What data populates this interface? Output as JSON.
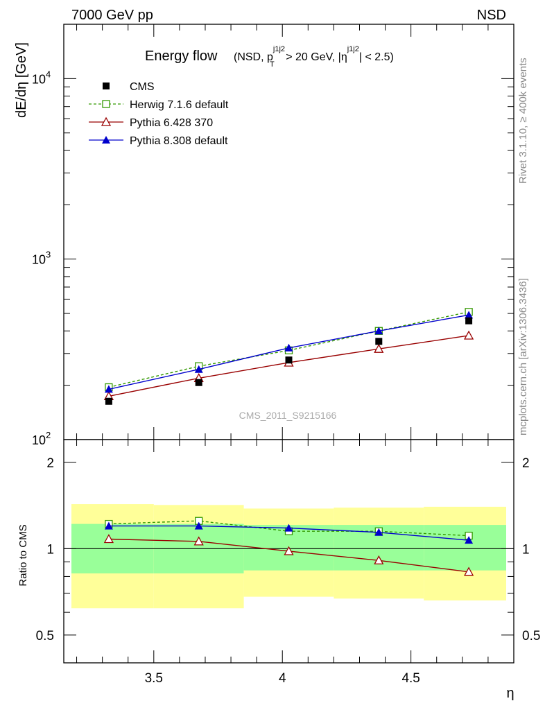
{
  "header": {
    "left": "7000 GeV pp",
    "right": "NSD"
  },
  "side_labels": {
    "rivet": "Rivet 3.1.10, ≥ 400k events",
    "mcplots": "mcplots.cern.ch [arXiv:1306.3436]"
  },
  "watermark": "CMS_2011_S9215166",
  "chart_data": [
    {
      "type": "scatter",
      "panel": "main",
      "title": "Energy flow",
      "title_sub_parts": {
        "a": "(NSD, p",
        "sup1": "j1j2",
        "sub1": "T",
        "b": " > 20 GeV, |η",
        "sup2": "j1j2",
        "c": "| < 2.5)"
      },
      "ylabel": "dE/dη [GeV]",
      "yscale": "log",
      "ylim": [
        100,
        20000
      ],
      "xlim": [
        3.15,
        4.9
      ],
      "ytick_labels": [
        {
          "base": "10",
          "exp": "2",
          "value": 100
        },
        {
          "base": "10",
          "exp": "3",
          "value": 1000
        },
        {
          "base": "10",
          "exp": "4",
          "value": 10000
        }
      ],
      "x": [
        3.325,
        3.675,
        4.025,
        4.375,
        4.725
      ],
      "series": [
        {
          "name": "CMS",
          "values": [
            163,
            207,
            276,
            350,
            455
          ],
          "color": "#000000",
          "marker": "filled-square",
          "line": "none"
        },
        {
          "name": "Herwig 7.1.6 default",
          "values": [
            195,
            255,
            312,
            400,
            510
          ],
          "color": "#339900",
          "marker": "open-square",
          "line": "dashed"
        },
        {
          "name": "Pythia 6.428 370",
          "values": [
            174,
            219,
            267,
            318,
            377
          ],
          "color": "#990000",
          "marker": "open-triangle",
          "line": "solid"
        },
        {
          "name": "Pythia 8.308 default",
          "values": [
            190,
            245,
            322,
            400,
            490
          ],
          "color": "#0000cc",
          "marker": "filled-triangle",
          "line": "solid"
        }
      ]
    },
    {
      "type": "line",
      "panel": "ratio",
      "ylabel": "Ratio to CMS",
      "ylim": [
        0.4,
        2.4
      ],
      "xlim": [
        3.15,
        4.9
      ],
      "xlabel": "η",
      "xtick_labels": [
        "3.5",
        "4",
        "4.5"
      ],
      "xtick_values": [
        3.5,
        4.0,
        4.5
      ],
      "ytick_labels": [
        "0.5",
        "1",
        "2"
      ],
      "ytick_values": [
        0.5,
        1,
        2
      ],
      "x": [
        3.325,
        3.675,
        4.025,
        4.375,
        4.725
      ],
      "bands": {
        "bin_edges": [
          3.15,
          3.5,
          3.85,
          4.2,
          4.55,
          4.9
        ],
        "yellow_low": [
          0.62,
          0.62,
          0.68,
          0.67,
          0.66
        ],
        "yellow_high": [
          1.43,
          1.42,
          1.38,
          1.39,
          1.4
        ],
        "green_low": [
          0.82,
          0.82,
          0.84,
          0.84,
          0.84
        ],
        "green_high": [
          1.22,
          1.22,
          1.21,
          1.21,
          1.21
        ],
        "yellow_color": "#ffff99",
        "green_color": "#99ff99"
      },
      "series": [
        {
          "name": "Herwig 7.1.6 default",
          "values": [
            1.22,
            1.25,
            1.15,
            1.15,
            1.11
          ],
          "color": "#339900",
          "marker": "open-square",
          "line": "dashed"
        },
        {
          "name": "Pythia 6.428 370",
          "values": [
            1.08,
            1.06,
            0.98,
            0.91,
            0.83
          ],
          "color": "#990000",
          "marker": "open-triangle",
          "line": "solid"
        },
        {
          "name": "Pythia 8.308 default",
          "values": [
            1.2,
            1.2,
            1.18,
            1.14,
            1.07
          ],
          "color": "#0000cc",
          "marker": "filled-triangle",
          "line": "solid"
        }
      ]
    }
  ]
}
